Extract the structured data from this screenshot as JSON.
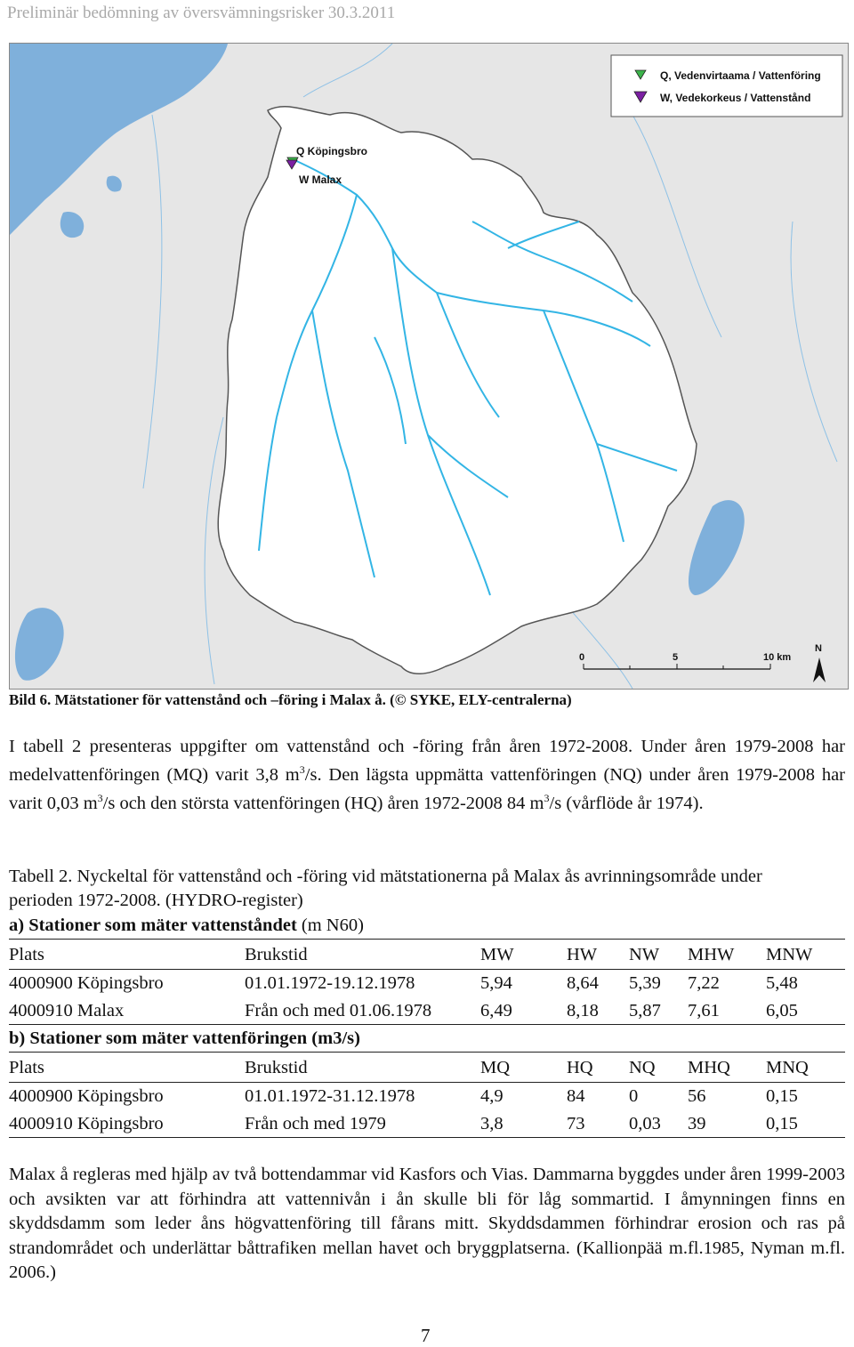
{
  "header": "Preliminär bedömning av översvämningsrisker 30.3.2011",
  "map": {
    "legend": [
      {
        "label": "Q, Vedenvirtaama / Vattenföring",
        "symbol": "green-triangle",
        "color": "#3cb44b"
      },
      {
        "label": "W, Vedekorkeus / Vattenstånd",
        "symbol": "purple-triangle",
        "color": "#7b1fa2"
      }
    ],
    "station_labels": {
      "q": "Q Köpingsbro",
      "w": "W Malax"
    },
    "scale": {
      "ticks": [
        "0",
        "5",
        "10 km"
      ]
    },
    "north": "N",
    "colors": {
      "land": "#e6e6e6",
      "water": "#7fb0db",
      "basin": "#ffffff",
      "river": "#33b5e5"
    }
  },
  "caption": "Bild 6. Mätstationer för vattenstånd och –föring i Malax å. (© SYKE, ELY-centralerna)",
  "paragraph1": {
    "t1": "I tabell 2 presenteras uppgifter om vattenstånd och -föring från åren 1972-2008. Under åren 1979-2008 har medelvattenföringen (MQ) varit 3,8 m",
    "sup1": "3",
    "t2": "/s. Den lägsta uppmätta vattenföringen (NQ) under åren 1979-2008 har varit 0,03 m",
    "sup2": "3",
    "t3": "/s och den största vattenföringen (HQ) åren 1972-2008 84 m",
    "sup3": "3",
    "t4": "/s (vårflöde år 1974)."
  },
  "table": {
    "caption": "Tabell 2. Nyckeltal för vattenstånd och -föring vid mätstationerna på Malax ås avrinningsområde under perioden 1972-2008. (HYDRO-register)",
    "section_a": {
      "title_bold": "a) Stationer som mäter vattenståndet",
      "title_rest": " (m N60)",
      "headers": [
        "Plats",
        "Brukstid",
        "MW",
        "HW",
        "NW",
        "MHW",
        "MNW"
      ],
      "rows": [
        [
          "4000900 Köpingsbro",
          "01.01.1972-19.12.1978",
          "5,94",
          "8,64",
          "5,39",
          "7,22",
          "5,48"
        ],
        [
          "4000910 Malax",
          "Från och med 01.06.1978",
          "6,49",
          "8,18",
          "5,87",
          "7,61",
          "6,05"
        ]
      ]
    },
    "section_b": {
      "title_bold": "b) Stationer som mäter vattenföringen (m3/s)",
      "headers": [
        "Plats",
        "Brukstid",
        "MQ",
        "HQ",
        "NQ",
        "MHQ",
        "MNQ"
      ],
      "rows": [
        [
          "4000900 Köpingsbro",
          "01.01.1972-31.12.1978",
          "4,9",
          "84",
          "0",
          "56",
          "0,15"
        ],
        [
          "4000910 Köpingsbro",
          "Från och med 1979",
          "3,8",
          "73",
          "0,03",
          "39",
          "0,15"
        ]
      ]
    }
  },
  "paragraph2": "Malax å regleras med hjälp av två bottendammar vid Kasfors och Vias. Dammarna byggdes under åren 1999-2003 och avsikten var att förhindra att vattennivån i ån skulle bli för låg sommartid. I åmynningen finns en skyddsdamm som leder åns högvattenföring till fårans mitt. Skyddsdammen förhindrar erosion och ras på strandområdet och underlättar båttrafiken mellan havet och bryggplatserna. (Kallionpää m.fl.1985, Nyman m.fl. 2006.)",
  "page_number": "7"
}
